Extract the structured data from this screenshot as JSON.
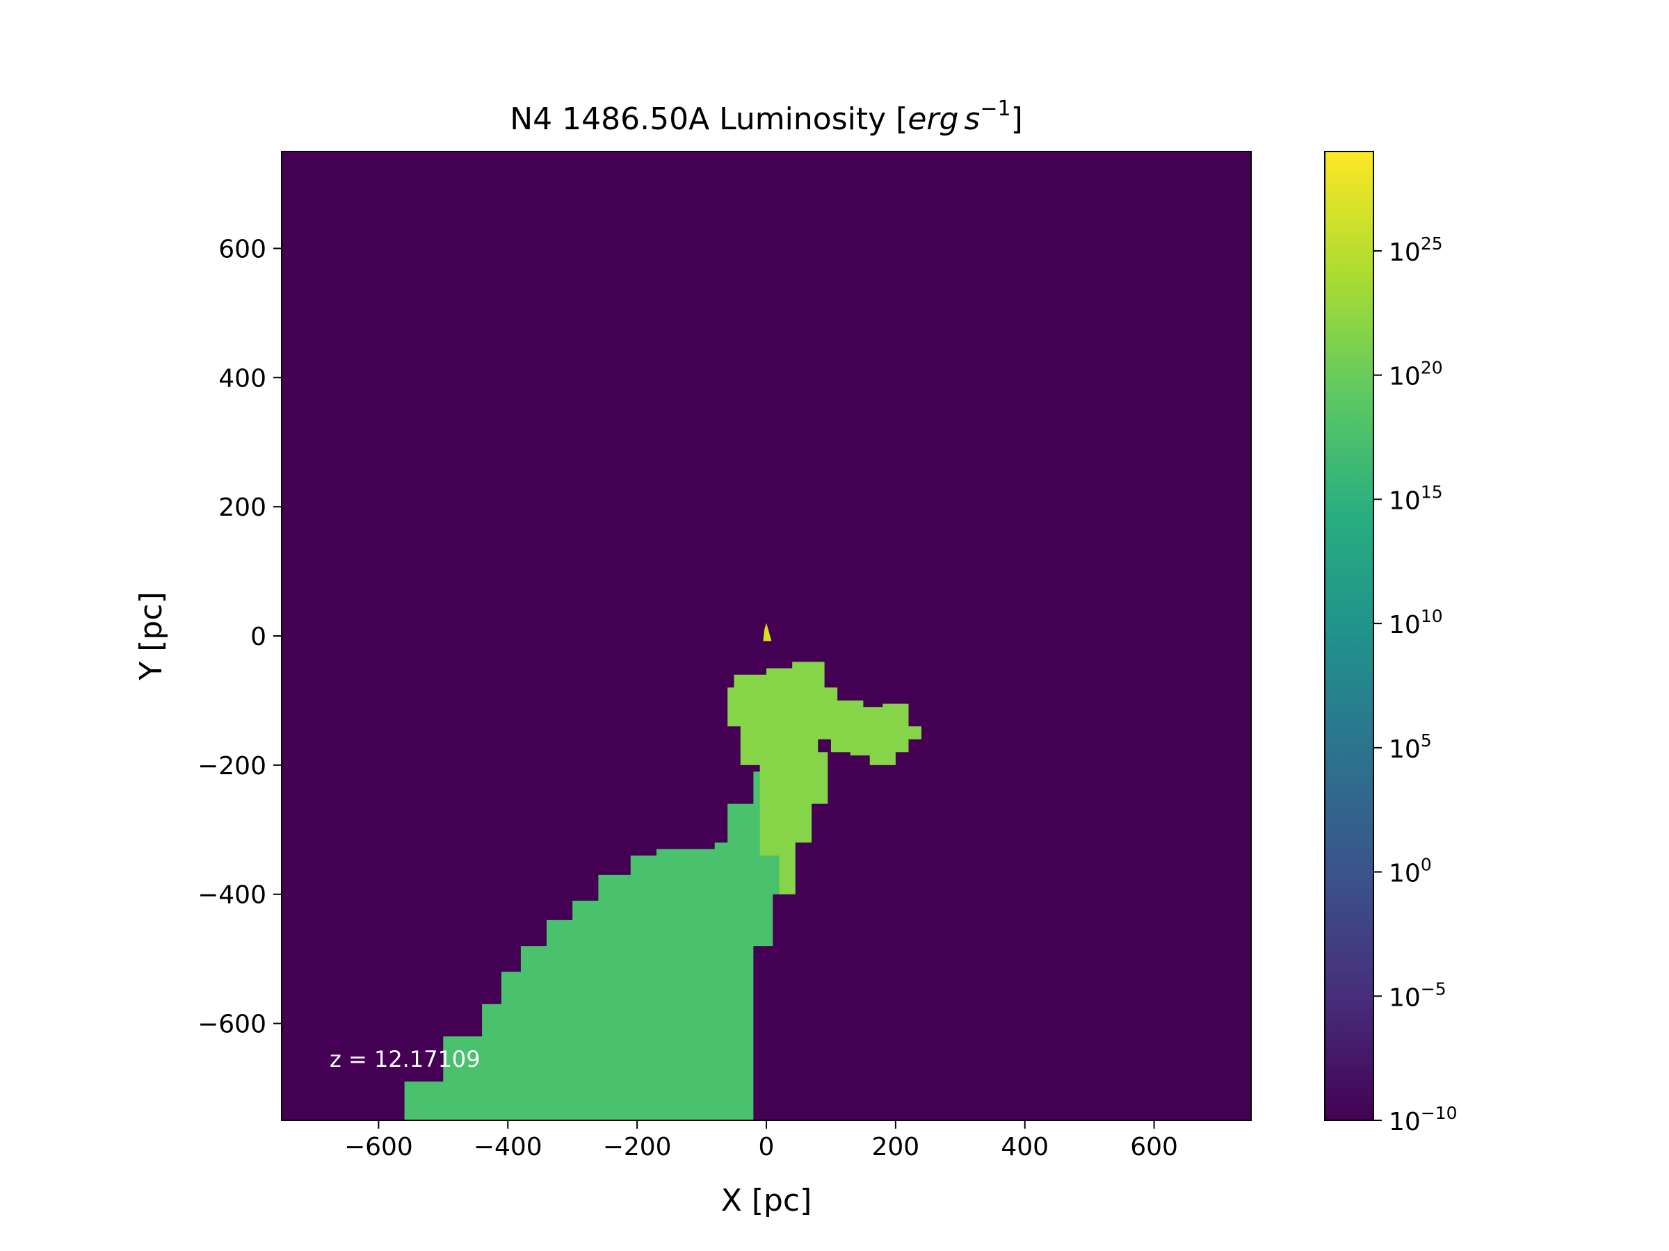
{
  "chart_data": {
    "type": "heatmap",
    "title_main": "N4 1486.50A Luminosity ",
    "title_unit_open": "[",
    "title_unit_erg": "erg",
    "title_unit_s": "s",
    "title_unit_exp": "−1",
    "title_unit_close": "]",
    "xlabel": "X [pc]",
    "ylabel": "Y [pc]",
    "xlim": [
      -750,
      750
    ],
    "ylim": [
      -750,
      750
    ],
    "xticks": [
      -600,
      -400,
      -200,
      0,
      200,
      400,
      600
    ],
    "yticks": [
      -600,
      -400,
      -200,
      0,
      200,
      400,
      600
    ],
    "xtick_labels": [
      "−600",
      "−400",
      "−200",
      "0",
      "200",
      "400",
      "600"
    ],
    "ytick_labels": [
      "−600",
      "−400",
      "−200",
      "0",
      "200",
      "400",
      "600"
    ],
    "annotation": "z = 12.17109",
    "colormap": "viridis",
    "background_color": "#440154",
    "colorbar": {
      "scale": "log",
      "range_exp": [
        -10,
        29
      ],
      "tick_exponents": [
        25,
        20,
        15,
        10,
        5,
        0,
        -5,
        -10
      ],
      "tick_base": "10",
      "tick_exp_labels": [
        "25",
        "20",
        "15",
        "10",
        "5",
        "0",
        "−5",
        "−10"
      ]
    },
    "regions": [
      {
        "name": "plume-lower",
        "log_value": 17.5,
        "color": "#49c16d",
        "outline": [
          [
            -560,
            -750
          ],
          [
            -560,
            -690
          ],
          [
            -500,
            -690
          ],
          [
            -500,
            -620
          ],
          [
            -440,
            -620
          ],
          [
            -440,
            -570
          ],
          [
            -410,
            -570
          ],
          [
            -410,
            -520
          ],
          [
            -380,
            -520
          ],
          [
            -380,
            -480
          ],
          [
            -340,
            -480
          ],
          [
            -340,
            -440
          ],
          [
            -300,
            -440
          ],
          [
            -300,
            -410
          ],
          [
            -260,
            -410
          ],
          [
            -260,
            -370
          ],
          [
            -210,
            -370
          ],
          [
            -210,
            -340
          ],
          [
            -170,
            -340
          ],
          [
            -170,
            -330
          ],
          [
            -80,
            -330
          ],
          [
            -80,
            -320
          ],
          [
            -60,
            -320
          ],
          [
            -60,
            -260
          ],
          [
            -20,
            -260
          ],
          [
            -20,
            -210
          ],
          [
            30,
            -210
          ],
          [
            30,
            -400
          ],
          [
            10,
            -400
          ],
          [
            10,
            -480
          ],
          [
            -20,
            -480
          ],
          [
            -20,
            -750
          ]
        ]
      },
      {
        "name": "plume-upper",
        "log_value": 22,
        "color": "#86d549",
        "outline": [
          [
            -40,
            -200
          ],
          [
            -40,
            -140
          ],
          [
            -60,
            -140
          ],
          [
            -60,
            -80
          ],
          [
            -50,
            -80
          ],
          [
            -50,
            -60
          ],
          [
            0,
            -60
          ],
          [
            0,
            -50
          ],
          [
            40,
            -50
          ],
          [
            40,
            -40
          ],
          [
            90,
            -40
          ],
          [
            90,
            -80
          ],
          [
            110,
            -80
          ],
          [
            110,
            -100
          ],
          [
            150,
            -100
          ],
          [
            150,
            -110
          ],
          [
            180,
            -110
          ],
          [
            180,
            -105
          ],
          [
            220,
            -105
          ],
          [
            220,
            -140
          ],
          [
            240,
            -140
          ],
          [
            240,
            -160
          ],
          [
            220,
            -160
          ],
          [
            220,
            -180
          ],
          [
            200,
            -180
          ],
          [
            200,
            -200
          ],
          [
            160,
            -200
          ],
          [
            160,
            -185
          ],
          [
            130,
            -185
          ],
          [
            130,
            -180
          ],
          [
            100,
            -180
          ],
          [
            100,
            -160
          ],
          [
            80,
            -160
          ],
          [
            80,
            -180
          ],
          [
            95,
            -180
          ],
          [
            95,
            -260
          ],
          [
            70,
            -260
          ],
          [
            70,
            -320
          ],
          [
            45,
            -320
          ],
          [
            45,
            -400
          ],
          [
            20,
            -400
          ],
          [
            20,
            -340
          ],
          [
            -10,
            -340
          ],
          [
            -10,
            -200
          ]
        ]
      },
      {
        "name": "core",
        "log_value": 27,
        "color": "#d8e219",
        "outline": [
          [
            -5,
            -8
          ],
          [
            -3,
            10
          ],
          [
            0,
            20
          ],
          [
            3,
            10
          ],
          [
            8,
            -8
          ]
        ]
      }
    ]
  }
}
